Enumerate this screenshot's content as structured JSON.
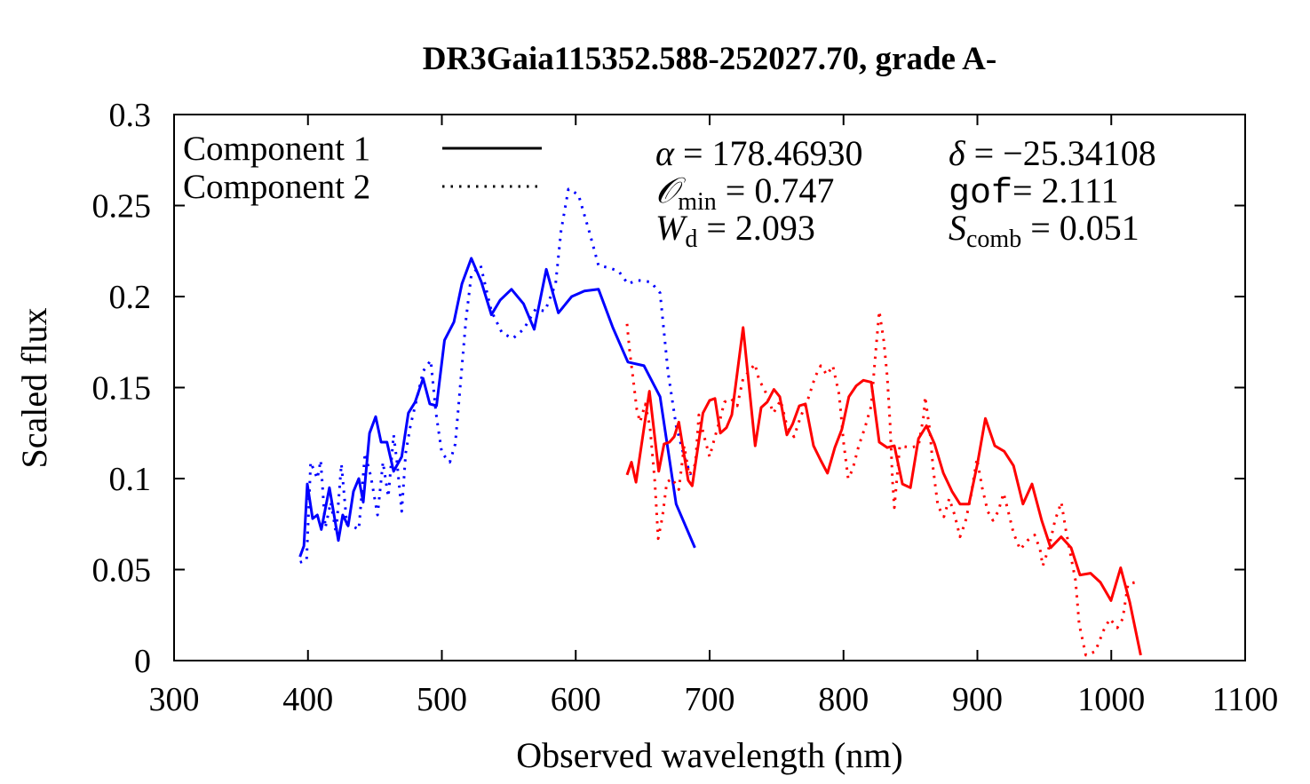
{
  "chart_data": {
    "type": "line",
    "title": "DR3Gaia115352.588-252027.70, grade A-",
    "xlabel": "Observed wavelength (nm)",
    "ylabel": "Scaled flux",
    "xlim": [
      300,
      1100
    ],
    "ylim": [
      0,
      0.3
    ],
    "xticks": [
      300,
      400,
      500,
      600,
      700,
      800,
      900,
      1000,
      1100
    ],
    "yticks": [
      0,
      0.05,
      0.1,
      0.15,
      0.2,
      0.25,
      0.3
    ],
    "ytick_labels": [
      "0",
      "0.05",
      "0.1",
      "0.15",
      "0.2",
      "0.25",
      "0.3"
    ],
    "grid": false,
    "legend": {
      "placement": "top-left",
      "entries": [
        {
          "label": "Component 1",
          "style": "solid"
        },
        {
          "label": "Component 2",
          "style": "dotted"
        }
      ]
    },
    "annotations": [
      {
        "symbol": "α",
        "sub": "",
        "value": " = 178.46930"
      },
      {
        "symbol": "δ",
        "sub": "",
        "value": " = −25.34108"
      },
      {
        "symbol": "𝒪",
        "sub": "min",
        "value": " = 0.747"
      },
      {
        "symbol": "gof",
        "sub": "",
        "value": "= 2.111"
      },
      {
        "symbol": "W",
        "sub": "d",
        "value": " = 2.093"
      },
      {
        "symbol": "S",
        "sub": "comb",
        "value": " = 0.051"
      }
    ],
    "series": [
      {
        "name": "blue Component 1",
        "color": "#0000ff",
        "style": "solid",
        "points": [
          [
            394,
            0.057
          ],
          [
            397,
            0.063
          ],
          [
            399.5,
            0.097
          ],
          [
            403.5,
            0.078
          ],
          [
            407,
            0.08
          ],
          [
            410,
            0.072
          ],
          [
            416,
            0.095
          ],
          [
            422.7,
            0.066
          ],
          [
            426,
            0.08
          ],
          [
            430,
            0.074
          ],
          [
            434,
            0.093
          ],
          [
            438,
            0.1
          ],
          [
            441.3,
            0.087
          ],
          [
            446,
            0.125
          ],
          [
            450.6,
            0.134
          ],
          [
            454.6,
            0.12
          ],
          [
            459,
            0.12
          ],
          [
            464,
            0.104
          ],
          [
            470,
            0.112
          ],
          [
            475,
            0.136
          ],
          [
            480,
            0.142
          ],
          [
            486,
            0.155
          ],
          [
            491,
            0.141
          ],
          [
            496,
            0.14
          ],
          [
            502,
            0.176
          ],
          [
            509,
            0.186
          ],
          [
            515,
            0.207
          ],
          [
            522,
            0.221
          ],
          [
            529.5,
            0.208
          ],
          [
            537,
            0.19
          ],
          [
            543.5,
            0.198
          ],
          [
            552,
            0.204
          ],
          [
            561,
            0.196
          ],
          [
            569,
            0.182
          ],
          [
            578,
            0.215
          ],
          [
            587,
            0.191
          ],
          [
            597,
            0.2
          ],
          [
            606.5,
            0.203
          ],
          [
            617,
            0.204
          ],
          [
            627.7,
            0.183
          ],
          [
            639,
            0.164
          ],
          [
            651,
            0.162
          ],
          [
            663,
            0.145
          ],
          [
            675,
            0.086
          ],
          [
            689,
            0.062
          ]
        ]
      },
      {
        "name": "blue Component 2",
        "color": "#0000ff",
        "style": "dotted",
        "points": [
          [
            394,
            0.054
          ],
          [
            399,
            0.055
          ],
          [
            402,
            0.109
          ],
          [
            407,
            0.1
          ],
          [
            409.5,
            0.11
          ],
          [
            413,
            0.073
          ],
          [
            417,
            0.087
          ],
          [
            421,
            0.07
          ],
          [
            425,
            0.108
          ],
          [
            429,
            0.075
          ],
          [
            433,
            0.074
          ],
          [
            438,
            0.072
          ],
          [
            442.6,
            0.114
          ],
          [
            447,
            0.101
          ],
          [
            452,
            0.08
          ],
          [
            456,
            0.109
          ],
          [
            460,
            0.09
          ],
          [
            464,
            0.124
          ],
          [
            466.5,
            0.109
          ],
          [
            470,
            0.082
          ],
          [
            473,
            0.114
          ],
          [
            476.5,
            0.129
          ],
          [
            482,
            0.146
          ],
          [
            486,
            0.159
          ],
          [
            491.7,
            0.165
          ],
          [
            495.6,
            0.136
          ],
          [
            500,
            0.114
          ],
          [
            506,
            0.109
          ],
          [
            510,
            0.119
          ],
          [
            514,
            0.153
          ],
          [
            518,
            0.187
          ],
          [
            522,
            0.212
          ],
          [
            529,
            0.217
          ],
          [
            537,
            0.192
          ],
          [
            545,
            0.18
          ],
          [
            553,
            0.177
          ],
          [
            561,
            0.182
          ],
          [
            570,
            0.193
          ],
          [
            577,
            0.192
          ],
          [
            585,
            0.207
          ],
          [
            589,
            0.236
          ],
          [
            594.5,
            0.259
          ],
          [
            602,
            0.256
          ],
          [
            610,
            0.236
          ],
          [
            617,
            0.217
          ],
          [
            624,
            0.216
          ],
          [
            632,
            0.214
          ],
          [
            639,
            0.207
          ],
          [
            646,
            0.209
          ],
          [
            656,
            0.208
          ],
          [
            663,
            0.202
          ],
          [
            669,
            0.158
          ],
          [
            675,
            0.129
          ],
          [
            681,
            0.112
          ],
          [
            686,
            0.102
          ]
        ]
      },
      {
        "name": "red Component 1",
        "color": "#ff0000",
        "style": "solid",
        "points": [
          [
            638.3,
            0.102
          ],
          [
            641.6,
            0.109
          ],
          [
            645,
            0.098
          ],
          [
            655,
            0.148
          ],
          [
            662,
            0.104
          ],
          [
            666,
            0.119
          ],
          [
            670,
            0.12
          ],
          [
            673.5,
            0.123
          ],
          [
            677,
            0.131
          ],
          [
            684,
            0.099
          ],
          [
            687,
            0.096
          ],
          [
            695,
            0.136
          ],
          [
            700,
            0.143
          ],
          [
            704,
            0.144
          ],
          [
            708,
            0.125
          ],
          [
            712.6,
            0.128
          ],
          [
            716.6,
            0.135
          ],
          [
            725,
            0.183
          ],
          [
            734,
            0.118
          ],
          [
            738.5,
            0.139
          ],
          [
            743,
            0.142
          ],
          [
            748,
            0.149
          ],
          [
            752.4,
            0.145
          ],
          [
            757.7,
            0.124
          ],
          [
            762,
            0.13
          ],
          [
            767,
            0.14
          ],
          [
            771.6,
            0.141
          ],
          [
            777.6,
            0.118
          ],
          [
            783,
            0.11
          ],
          [
            788,
            0.103
          ],
          [
            793.5,
            0.117
          ],
          [
            798.8,
            0.127
          ],
          [
            804,
            0.145
          ],
          [
            809.5,
            0.151
          ],
          [
            814.8,
            0.154
          ],
          [
            820.7,
            0.153
          ],
          [
            826.7,
            0.12
          ],
          [
            832.7,
            0.117
          ],
          [
            838,
            0.118
          ],
          [
            844,
            0.097
          ],
          [
            850,
            0.095
          ],
          [
            856,
            0.122
          ],
          [
            862,
            0.129
          ],
          [
            868,
            0.119
          ],
          [
            874.6,
            0.103
          ],
          [
            881,
            0.093
          ],
          [
            887,
            0.086
          ],
          [
            893.7,
            0.086
          ],
          [
            900,
            0.108
          ],
          [
            906,
            0.133
          ],
          [
            913,
            0.118
          ],
          [
            920,
            0.115
          ],
          [
            927,
            0.107
          ],
          [
            934,
            0.086
          ],
          [
            940.8,
            0.097
          ],
          [
            948,
            0.077
          ],
          [
            954.7,
            0.062
          ],
          [
            962.6,
            0.068
          ],
          [
            970,
            0.062
          ],
          [
            976.6,
            0.047
          ],
          [
            984.5,
            0.048
          ],
          [
            991.9,
            0.043
          ],
          [
            999.8,
            0.033
          ],
          [
            1007,
            0.051
          ],
          [
            1013.8,
            0.032
          ],
          [
            1022,
            0.003
          ]
        ]
      },
      {
        "name": "red Component 2",
        "color": "#ff0000",
        "style": "dotted",
        "points": [
          [
            638.3,
            0.185
          ],
          [
            640.4,
            0.169
          ],
          [
            643,
            0.154
          ],
          [
            645.6,
            0.138
          ],
          [
            648,
            0.131
          ],
          [
            652,
            0.141
          ],
          [
            655.5,
            0.128
          ],
          [
            659,
            0.099
          ],
          [
            661.6,
            0.067
          ],
          [
            664.8,
            0.079
          ],
          [
            668,
            0.098
          ],
          [
            672,
            0.1
          ],
          [
            677,
            0.094
          ],
          [
            681,
            0.118
          ],
          [
            684.7,
            0.102
          ],
          [
            689.4,
            0.108
          ],
          [
            692,
            0.135
          ],
          [
            696.7,
            0.121
          ],
          [
            700,
            0.112
          ],
          [
            704,
            0.123
          ],
          [
            708,
            0.133
          ],
          [
            711,
            0.142
          ],
          [
            716,
            0.144
          ],
          [
            720.6,
            0.14
          ],
          [
            725,
            0.155
          ],
          [
            729.6,
            0.159
          ],
          [
            733.8,
            0.163
          ],
          [
            737,
            0.154
          ],
          [
            741,
            0.149
          ],
          [
            747.7,
            0.136
          ],
          [
            753,
            0.143
          ],
          [
            757.7,
            0.129
          ],
          [
            763,
            0.123
          ],
          [
            768,
            0.134
          ],
          [
            773.6,
            0.144
          ],
          [
            778.9,
            0.156
          ],
          [
            783,
            0.162
          ],
          [
            787.6,
            0.157
          ],
          [
            792,
            0.162
          ],
          [
            796.8,
            0.146
          ],
          [
            800,
            0.12
          ],
          [
            803.5,
            0.1
          ],
          [
            806.8,
            0.105
          ],
          [
            811.4,
            0.118
          ],
          [
            816,
            0.128
          ],
          [
            820.7,
            0.14
          ],
          [
            823.4,
            0.164
          ],
          [
            826.7,
            0.192
          ],
          [
            830,
            0.176
          ],
          [
            832.7,
            0.156
          ],
          [
            834.7,
            0.131
          ],
          [
            836.6,
            0.099
          ],
          [
            838,
            0.084
          ],
          [
            842,
            0.118
          ],
          [
            850,
            0.117
          ],
          [
            856,
            0.118
          ],
          [
            860,
            0.135
          ],
          [
            861,
            0.145
          ],
          [
            864.5,
            0.126
          ],
          [
            867,
            0.105
          ],
          [
            870.5,
            0.085
          ],
          [
            875,
            0.079
          ],
          [
            879,
            0.089
          ],
          [
            883,
            0.08
          ],
          [
            887,
            0.068
          ],
          [
            891,
            0.076
          ],
          [
            895,
            0.09
          ],
          [
            899.7,
            0.111
          ],
          [
            903.6,
            0.095
          ],
          [
            907.7,
            0.082
          ],
          [
            911.6,
            0.077
          ],
          [
            915.6,
            0.082
          ],
          [
            919.6,
            0.092
          ],
          [
            923,
            0.082
          ],
          [
            927,
            0.07
          ],
          [
            932,
            0.061
          ],
          [
            937.5,
            0.066
          ],
          [
            942.8,
            0.069
          ],
          [
            946.8,
            0.061
          ],
          [
            948.8,
            0.052
          ],
          [
            953.4,
            0.062
          ],
          [
            958,
            0.077
          ],
          [
            962.7,
            0.087
          ],
          [
            966,
            0.072
          ],
          [
            968.6,
            0.062
          ],
          [
            973.3,
            0.044
          ],
          [
            976,
            0.02
          ],
          [
            981,
            0.003
          ],
          [
            988,
            0.005
          ],
          [
            994.5,
            0.017
          ],
          [
            999,
            0.023
          ],
          [
            1004.5,
            0.018
          ],
          [
            1008.5,
            0.023
          ],
          [
            1012.5,
            0.042
          ],
          [
            1017.7,
            0.043
          ]
        ]
      }
    ]
  }
}
